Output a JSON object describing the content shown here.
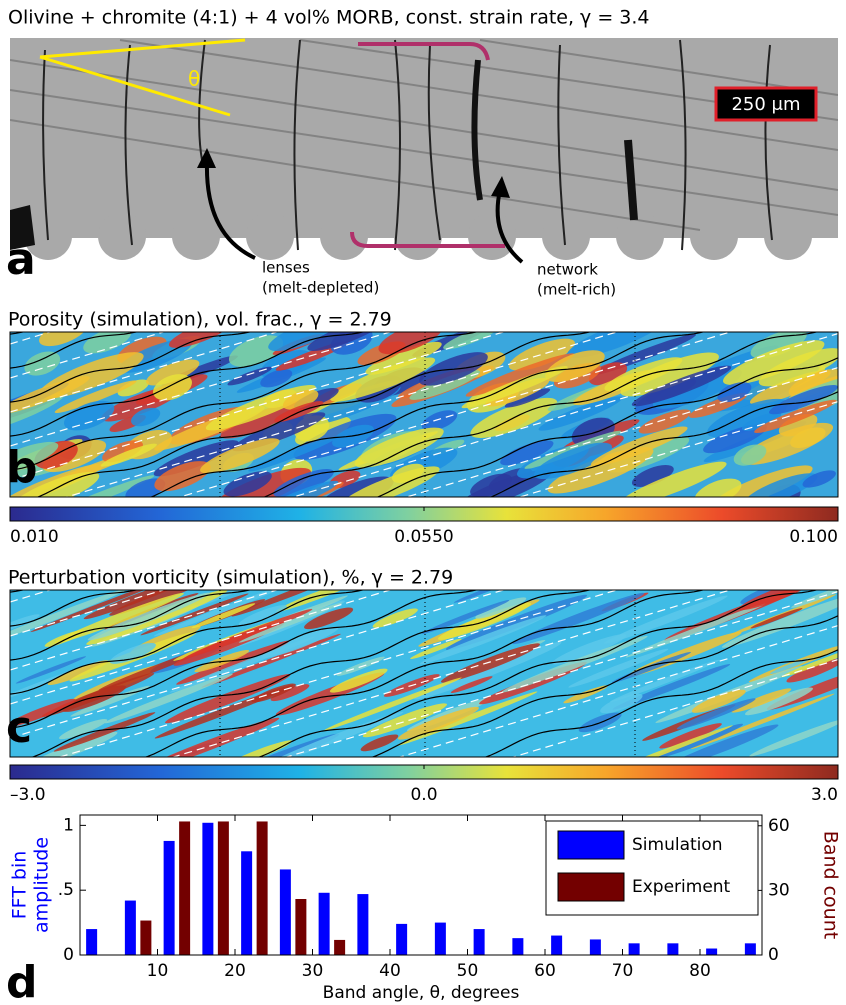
{
  "panels": [
    {
      "letter": "a",
      "title": "Olivine + chromite (4:1) + 4 vol% MORB, const. strain rate, γ = 3.4",
      "annotations": {
        "angle": "θ",
        "scale_bar": "250 μm",
        "lenses": "lenses",
        "lenses_note": "(melt-depleted)",
        "network": "network",
        "network_note": "(melt-rich)"
      }
    },
    {
      "letter": "b",
      "title": "Porosity (simulation), vol. frac., γ = 2.79",
      "colorbar": {
        "clim": [
          0.01,
          0.1
        ],
        "ticks": [
          {
            "value": 0.01,
            "label": "0.010"
          },
          {
            "value": 0.055,
            "label": "0.0550"
          },
          {
            "value": 0.1,
            "label": "0.100"
          }
        ]
      }
    },
    {
      "letter": "c",
      "title": "Perturbation vorticity (simulation), %, γ = 2.79",
      "colorbar": {
        "clim": [
          -3,
          3
        ],
        "ticks": [
          {
            "value": -3,
            "label": "–3.0"
          },
          {
            "value": 0,
            "label": "0.0"
          },
          {
            "value": 3,
            "label": "3.0"
          }
        ]
      }
    }
  ],
  "chart_data": {
    "type": "bar",
    "panel_label": "d",
    "x_label": "Band angle, θ, degrees",
    "y_label": [
      "FFT bin",
      "amplitude"
    ],
    "y2_label": "Band count",
    "xlim": [
      0,
      88
    ],
    "xticks": [
      10,
      20,
      30,
      40,
      50,
      60,
      70,
      80
    ],
    "ylim": [
      0,
      1.08
    ],
    "yticks": [
      0,
      {
        "value": 0.5,
        "label": ".5"
      },
      1
    ],
    "y2lim": [
      0,
      65
    ],
    "y2ticks": [
      0,
      30,
      60
    ],
    "legend": "upper right",
    "series": [
      {
        "name": "Simulation",
        "color": "#0000ff",
        "x": [
          1.5,
          6.5,
          11.5,
          16.5,
          21.5,
          26.5,
          31.5,
          36.5,
          41.5,
          46.5,
          51.5,
          56.5,
          61.5,
          66.5,
          71.5,
          76.5,
          81.5,
          86.5
        ],
        "values": [
          0.2,
          0.42,
          0.88,
          1.02,
          0.8,
          0.66,
          0.48,
          0.47,
          0.24,
          0.25,
          0.2,
          0.13,
          0.15,
          0.12,
          0.09,
          0.09,
          0.05,
          0.09
        ]
      },
      {
        "name": "Experiment",
        "color": "#730000",
        "axis": "y2",
        "x": [
          8.5,
          13.5,
          18.5,
          23.5,
          28.5,
          33.5
        ],
        "values": [
          16,
          62,
          62,
          62,
          26,
          7
        ]
      }
    ]
  }
}
